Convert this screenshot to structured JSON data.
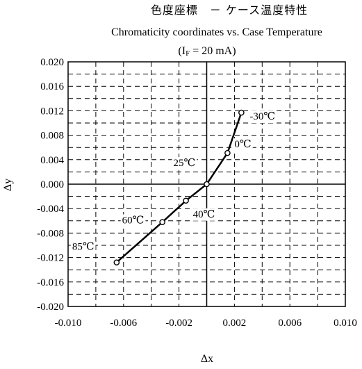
{
  "chart_data": {
    "type": "line",
    "title_jp": "色度座標　－ ケース温度特性",
    "title_en": "Chromaticity coordinates vs. Case Temperature",
    "condition": "(IF = 20 mA)",
    "condition_parts": {
      "open": "(I",
      "sub": "F",
      "rest": " = 20 mA)"
    },
    "xlabel": "Δx",
    "ylabel": "Δy",
    "xlim": [
      -0.01,
      0.01
    ],
    "ylim": [
      -0.02,
      0.02
    ],
    "x_ticks": [
      "-0.010",
      "-0.006",
      "-0.002",
      "0.002",
      "0.006",
      "0.010"
    ],
    "y_ticks": [
      "0.020",
      "0.016",
      "0.012",
      "0.008",
      "0.004",
      "0.000",
      "-0.004",
      "-0.008",
      "-0.012",
      "-0.016",
      "-0.020"
    ],
    "grid": true,
    "series": [
      {
        "points": [
          {
            "x": 0.0025,
            "y": 0.0117,
            "label": "-30℃"
          },
          {
            "x": 0.0015,
            "y": 0.0051,
            "label": "0℃"
          },
          {
            "x": 0.0,
            "y": 0.0,
            "label": "25℃"
          },
          {
            "x": -0.0015,
            "y": -0.0027,
            "label": "40℃"
          },
          {
            "x": -0.0032,
            "y": -0.0062,
            "label": "60℃"
          },
          {
            "x": -0.0065,
            "y": -0.0128,
            "label": "85℃"
          }
        ]
      }
    ]
  }
}
